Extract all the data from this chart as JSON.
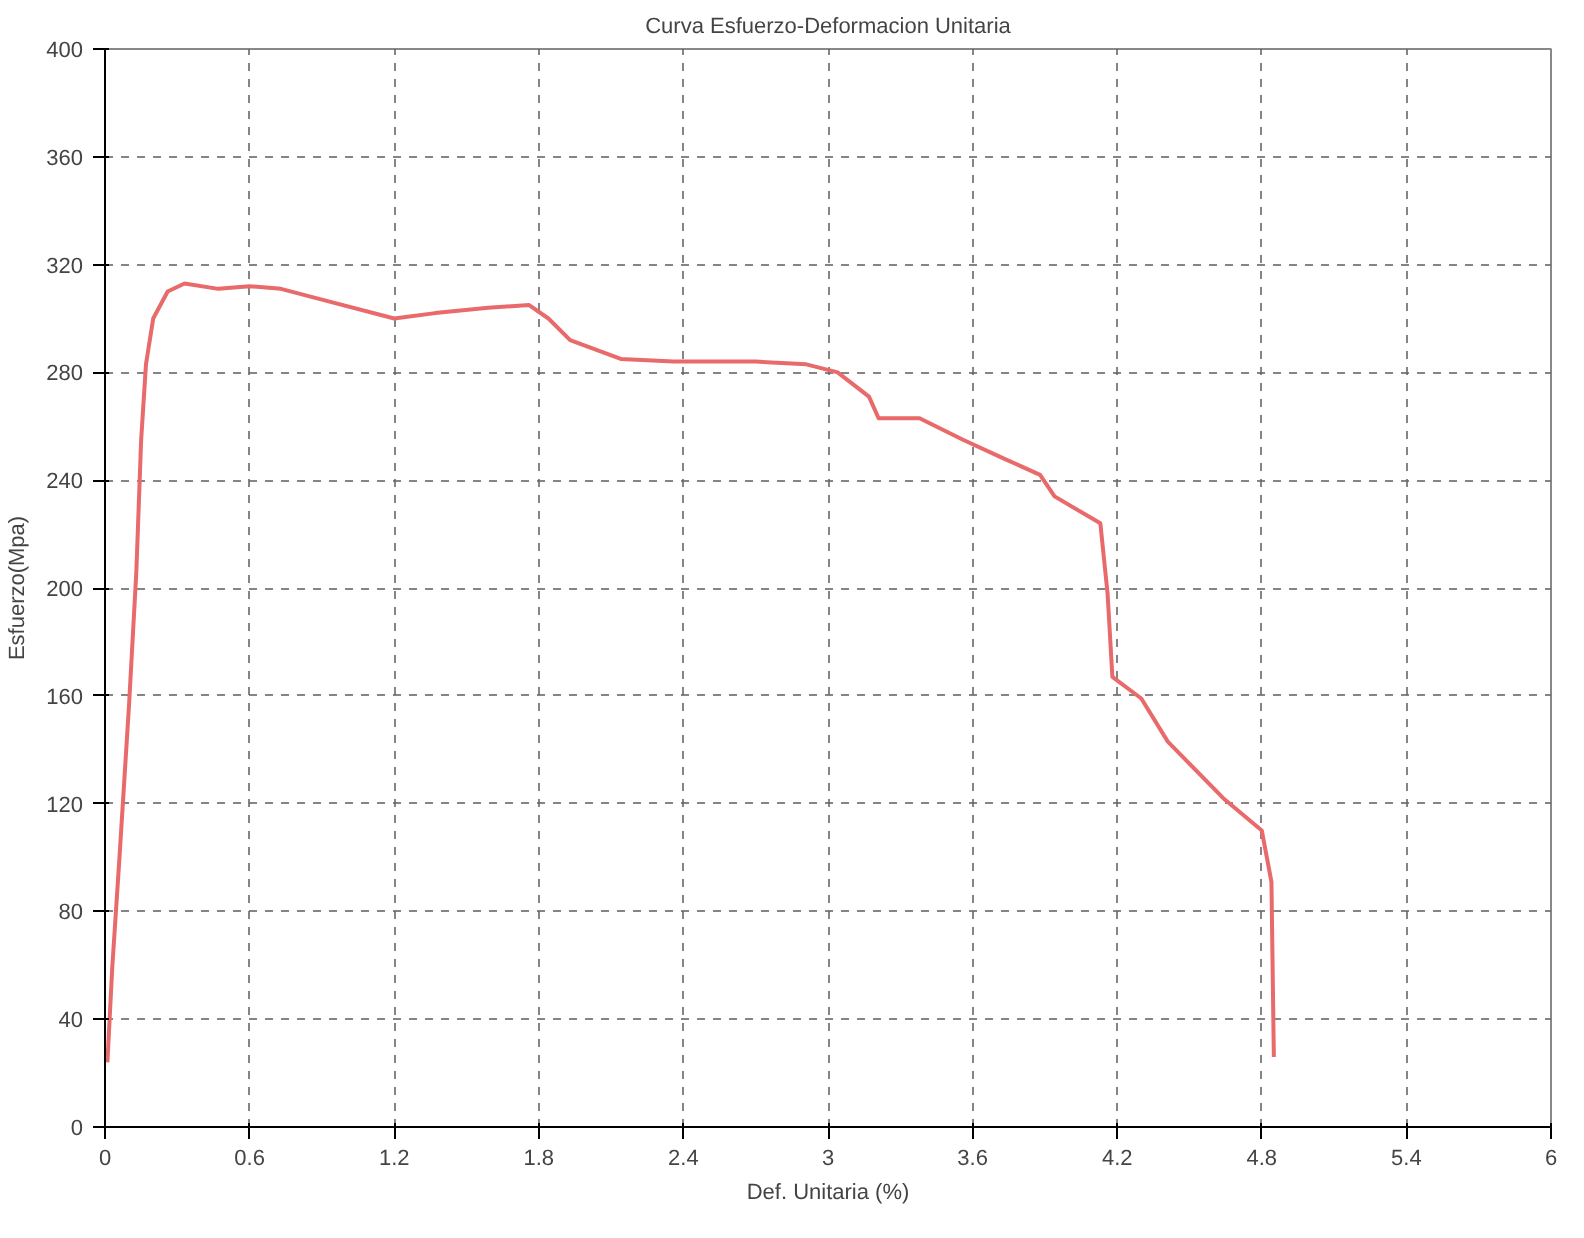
{
  "chart_data": {
    "type": "line",
    "title": "Curva Esfuerzo-Deformacion Unitaria",
    "xlabel": "Def. Unitaria (%)",
    "ylabel": "Esfuerzo(Mpa)",
    "x": [
      0.01,
      0.03,
      0.06,
      0.1,
      0.13,
      0.15,
      0.17,
      0.2,
      0.26,
      0.33,
      0.47,
      0.6,
      0.73,
      0.9,
      1.2,
      1.37,
      1.59,
      1.76,
      1.84,
      1.93,
      2.14,
      2.36,
      2.7,
      2.91,
      3.04,
      3.17,
      3.21,
      3.38,
      3.56,
      3.73,
      3.88,
      3.94,
      4.13,
      4.16,
      4.18,
      4.3,
      4.41,
      4.64,
      4.8,
      4.84,
      4.85
    ],
    "series": [
      {
        "color": "#e86a6a",
        "values": [
          24,
          59,
          100,
          157,
          206,
          255,
          283,
          300,
          310,
          313,
          311,
          312,
          311,
          307,
          300,
          302,
          304,
          305,
          300,
          292,
          285,
          284,
          284,
          283,
          280,
          271,
          263,
          263,
          255,
          248,
          242,
          234,
          224,
          198,
          167,
          159,
          143,
          122,
          110,
          91,
          26
        ]
      }
    ],
    "xlim": [
      0,
      6
    ],
    "xticks": [
      0,
      0.6,
      1.2,
      1.8,
      2.4,
      3,
      3.6,
      4.2,
      4.8,
      5.4,
      6
    ],
    "ylim": [
      0,
      400
    ],
    "yticks": [
      0,
      40,
      80,
      120,
      160,
      200,
      240,
      280,
      320,
      360,
      400
    ],
    "grid": true,
    "line_style": "solid",
    "marker": "none"
  }
}
